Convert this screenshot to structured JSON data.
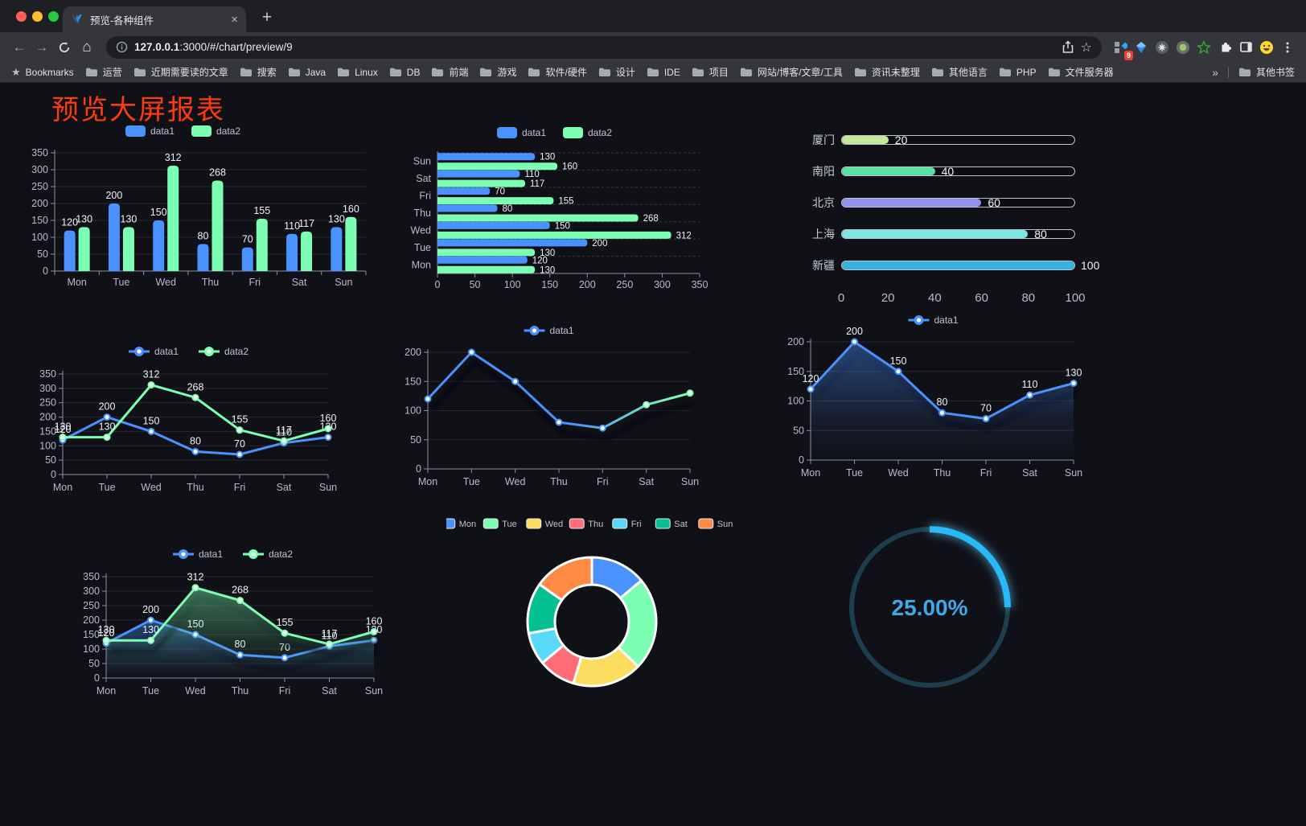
{
  "browser": {
    "traffic_lights": [
      "#ff5f57",
      "#febc2e",
      "#28c840"
    ],
    "tab": {
      "title": "预览-各种组件",
      "close_glyph": "×",
      "new_tab_glyph": "+"
    },
    "address": {
      "host": "127.0.0.1",
      "path": ":3000/#/chart/preview/9"
    },
    "nav_icons": {
      "back": "←",
      "forward": "→",
      "home": "⌂",
      "bookmark_star": "☆"
    },
    "extension_badge": "9",
    "bookmarks_bar": {
      "bookmarks_label": "Bookmarks",
      "bookmarks_star_glyph": "★",
      "folders": [
        "运营",
        "近期需要读的文章",
        "搜索",
        "Java",
        "Linux",
        "DB",
        "前端",
        "游戏",
        "软件/硬件",
        "设计",
        "IDE",
        "项目",
        "网站/博客/文章/工具",
        "资讯未整理",
        "其他语言",
        "PHP",
        "文件服务器"
      ],
      "overflow_glyph": "»",
      "other_bookmarks": "其他书签"
    }
  },
  "page": {
    "title": "预览大屏报表",
    "title_color": "#fb3b10",
    "background": "#101117"
  },
  "palette": {
    "data1": "#4992ff",
    "data2": "#7cffb2",
    "axis_text": "#b9b8ce",
    "axis_line": "#8e8fa3"
  },
  "chart_data": [
    {
      "id": "bar1",
      "type": "bar",
      "categories": [
        "Mon",
        "Tue",
        "Wed",
        "Thu",
        "Fri",
        "Sat",
        "Sun"
      ],
      "series": [
        {
          "name": "data1",
          "color": "#4992ff",
          "values": [
            120,
            200,
            150,
            80,
            70,
            110,
            130
          ]
        },
        {
          "name": "data2",
          "color": "#7cffb2",
          "values": [
            130,
            130,
            312,
            268,
            155,
            117,
            160
          ]
        }
      ],
      "ylim": [
        0,
        350
      ],
      "ytick": 50,
      "value_labels": true,
      "legend_position": "top",
      "grid": true
    },
    {
      "id": "hbar",
      "type": "bar-horizontal",
      "categories": [
        "Mon",
        "Tue",
        "Wed",
        "Thu",
        "Fri",
        "Sat",
        "Sun"
      ],
      "series": [
        {
          "name": "data1",
          "color": "#4992ff",
          "values": [
            120,
            200,
            150,
            80,
            70,
            110,
            130
          ]
        },
        {
          "name": "data2",
          "color": "#7cffb2",
          "values": [
            130,
            130,
            312,
            268,
            155,
            117,
            160
          ]
        }
      ],
      "xlim": [
        0,
        350
      ],
      "xtick": 50,
      "value_labels": true,
      "legend_position": "top",
      "grid": true
    },
    {
      "id": "progress",
      "type": "progress",
      "max": 100,
      "axis_ticks": [
        0,
        20,
        40,
        60,
        80,
        100
      ],
      "items": [
        {
          "label": "厦门",
          "value": 20,
          "color": "#c4e79c"
        },
        {
          "label": "南阳",
          "value": 40,
          "color": "#59e0a5"
        },
        {
          "label": "北京",
          "value": 60,
          "color": "#9290f1"
        },
        {
          "label": "上海",
          "value": 80,
          "color": "#7ce6e2"
        },
        {
          "label": "新疆",
          "value": 100,
          "color": "#37b1e2"
        }
      ]
    },
    {
      "id": "line2",
      "type": "line",
      "categories": [
        "Mon",
        "Tue",
        "Wed",
        "Thu",
        "Fri",
        "Sat",
        "Sun"
      ],
      "series": [
        {
          "name": "data1",
          "color": "#4992ff",
          "values": [
            120,
            200,
            150,
            80,
            70,
            110,
            130
          ]
        },
        {
          "name": "data2",
          "color": "#7cffb2",
          "values": [
            130,
            130,
            312,
            268,
            155,
            117,
            160
          ]
        }
      ],
      "ylim": [
        0,
        350
      ],
      "ytick": 50,
      "value_labels": true,
      "legend_position": "top",
      "grid": true
    },
    {
      "id": "lineGrad",
      "type": "line",
      "categories": [
        "Mon",
        "Tue",
        "Wed",
        "Thu",
        "Fri",
        "Sat",
        "Sun"
      ],
      "series": [
        {
          "name": "data1",
          "color": "#4992ff",
          "gradient_to": "#7cffb2",
          "values": [
            120,
            200,
            150,
            80,
            70,
            110,
            130
          ]
        }
      ],
      "ylim": [
        0,
        200
      ],
      "ytick": 50,
      "value_labels": false,
      "shadow": true,
      "legend_position": "top",
      "grid": true
    },
    {
      "id": "lineArea",
      "type": "line",
      "categories": [
        "Mon",
        "Tue",
        "Wed",
        "Thu",
        "Fri",
        "Sat",
        "Sun"
      ],
      "series": [
        {
          "name": "data1",
          "color": "#4992ff",
          "area": true,
          "values": [
            120,
            200,
            150,
            80,
            70,
            110,
            130
          ]
        }
      ],
      "ylim": [
        0,
        200
      ],
      "ytick": 50,
      "value_labels": true,
      "shadow": true,
      "legend_position": "top",
      "grid": true
    },
    {
      "id": "lineArea2",
      "type": "line",
      "categories": [
        "Mon",
        "Tue",
        "Wed",
        "Thu",
        "Fri",
        "Sat",
        "Sun"
      ],
      "series": [
        {
          "name": "data1",
          "color": "#4992ff",
          "area": true,
          "values": [
            120,
            200,
            150,
            80,
            70,
            110,
            130
          ]
        },
        {
          "name": "data2",
          "color": "#7cffb2",
          "area": true,
          "values": [
            130,
            130,
            312,
            268,
            155,
            117,
            160
          ]
        }
      ],
      "ylim": [
        0,
        350
      ],
      "ytick": 50,
      "value_labels": true,
      "shadow": true,
      "legend_position": "top",
      "grid": true
    },
    {
      "id": "pie",
      "type": "pie",
      "labels": [
        "Mon",
        "Tue",
        "Wed",
        "Thu",
        "Fri",
        "Sat",
        "Sun"
      ],
      "values": [
        120,
        200,
        150,
        80,
        70,
        110,
        130
      ],
      "colors": [
        "#4992ff",
        "#7cffb2",
        "#fddd60",
        "#ff6e76",
        "#58d9f9",
        "#05c091",
        "#ff8a45"
      ],
      "donut": true,
      "legend_position": "top"
    },
    {
      "id": "gauge",
      "type": "gauge",
      "value": 25,
      "max": 100,
      "display": "25.00%",
      "color": "#28b9f7",
      "track_color": "#1d3e4c",
      "text_color": "#3fa9e8"
    }
  ]
}
